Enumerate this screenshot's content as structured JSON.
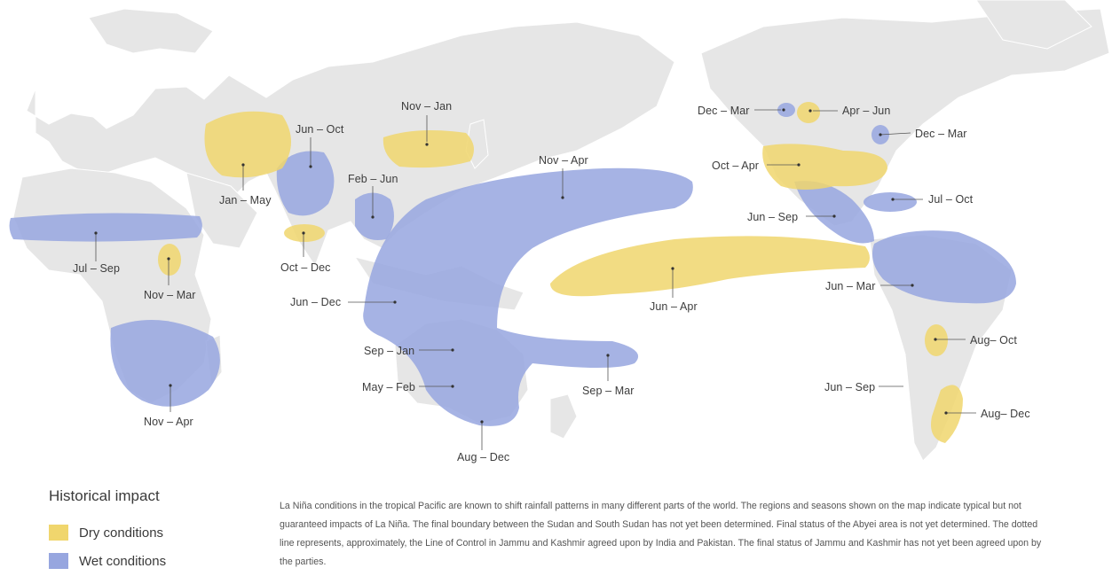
{
  "colors": {
    "land": "#e6e6e6",
    "dry": "#f0d66d",
    "wet": "#97a6df",
    "text": "#3d3d3d"
  },
  "map_labels": [
    {
      "id": "nov-jan-asia",
      "text": "Nov – Jan"
    },
    {
      "id": "jun-oct-india",
      "text": "Jun – Oct"
    },
    {
      "id": "jan-may-west-asia",
      "text": "Jan – May"
    },
    {
      "id": "feb-jun-se-asia",
      "text": "Feb – Jun"
    },
    {
      "id": "oct-dec-srilanka",
      "text": "Oct – Dec"
    },
    {
      "id": "jul-sep-sahel",
      "text": "Jul – Sep"
    },
    {
      "id": "nov-mar-east-africa",
      "text": "Nov – Mar"
    },
    {
      "id": "nov-apr-southern-africa",
      "text": "Nov – Apr"
    },
    {
      "id": "nov-apr-pacific",
      "text": "Nov – Apr"
    },
    {
      "id": "jun-dec-indonesia",
      "text": "Jun – Dec"
    },
    {
      "id": "sep-jan-australia",
      "text": "Sep – Jan"
    },
    {
      "id": "may-feb-australia",
      "text": "May – Feb"
    },
    {
      "id": "aug-dec-australia",
      "text": "Aug – Dec"
    },
    {
      "id": "sep-mar-nz",
      "text": "Sep – Mar"
    },
    {
      "id": "jun-apr-central-pacific",
      "text": "Jun – Apr"
    },
    {
      "id": "dec-mar-north-us",
      "text": "Dec – Mar"
    },
    {
      "id": "apr-jun-north-us",
      "text": "Apr – Jun"
    },
    {
      "id": "dec-mar-east-us",
      "text": "Dec – Mar"
    },
    {
      "id": "oct-apr-south-us",
      "text": "Oct – Apr"
    },
    {
      "id": "jun-sep-central-america",
      "text": "Jun – Sep"
    },
    {
      "id": "jul-oct-caribbean",
      "text": "Jul – Oct"
    },
    {
      "id": "jun-mar-north-south-america",
      "text": "Jun – Mar"
    },
    {
      "id": "aug-oct-south-america",
      "text": "Aug– Oct"
    },
    {
      "id": "jun-sep-chile",
      "text": "Jun – Sep"
    },
    {
      "id": "aug-dec-argentina",
      "text": "Aug– Dec"
    }
  ],
  "legend": {
    "title": "Historical impact",
    "items": [
      {
        "label": "Dry conditions",
        "color": "#f0d66d"
      },
      {
        "label": "Wet conditions",
        "color": "#97a6df"
      }
    ]
  },
  "note": "La Niña conditions in the tropical Pacific are known to shift rainfall patterns in many different parts of the world. The regions and seasons shown on the map indicate typical but not guaranteed impacts of La Niña. The final boundary between the Sudan and South Sudan has not yet been determined. Final status of the Abyei area is not yet determined. The dotted line represents, approximately, the Line of Control in Jammu and Kashmir agreed upon by India and Pakistan. The final status of Jammu and Kashmir has not yet been agreed upon by the parties."
}
